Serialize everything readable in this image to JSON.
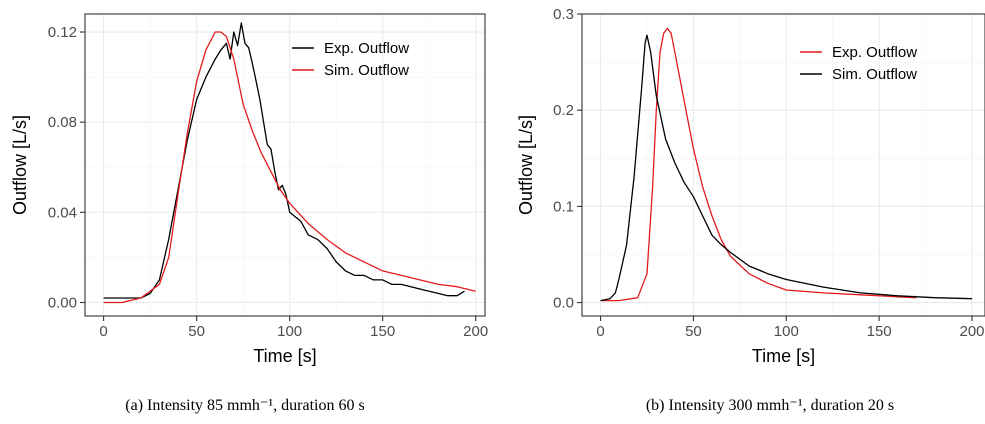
{
  "chart_data": [
    {
      "type": "line",
      "caption": "(a)  Intensity 85 mmh⁻¹, duration 60 s",
      "xlabel": "Time [s]",
      "ylabel": "Outflow [L/s]",
      "xlim": [
        -10,
        205
      ],
      "ylim": [
        -0.006,
        0.128
      ],
      "xticks": [
        0,
        50,
        100,
        150,
        200
      ],
      "xtick_labels": [
        "0",
        "50",
        "100",
        "150",
        "200"
      ],
      "yticks": [
        0.0,
        0.04,
        0.08,
        0.12
      ],
      "ytick_labels": [
        "0.00",
        "0.04",
        "0.08",
        "0.12"
      ],
      "grid": true,
      "legend_position": "top-right",
      "series": [
        {
          "name": "Exp. Outflow",
          "color": "#000000",
          "x": [
            0,
            10,
            20,
            25,
            30,
            35,
            40,
            45,
            50,
            55,
            60,
            63,
            66,
            68,
            70,
            72,
            74,
            76,
            78,
            80,
            82,
            84,
            86,
            88,
            90,
            92,
            94,
            96,
            98,
            100,
            103,
            106,
            110,
            115,
            120,
            125,
            130,
            135,
            140,
            145,
            150,
            155,
            160,
            170,
            180,
            185,
            190,
            194
          ],
          "y": [
            0.002,
            0.002,
            0.002,
            0.004,
            0.01,
            0.028,
            0.05,
            0.072,
            0.09,
            0.1,
            0.108,
            0.112,
            0.115,
            0.108,
            0.12,
            0.114,
            0.124,
            0.115,
            0.113,
            0.106,
            0.098,
            0.09,
            0.08,
            0.07,
            0.068,
            0.058,
            0.05,
            0.052,
            0.048,
            0.04,
            0.038,
            0.036,
            0.03,
            0.028,
            0.024,
            0.018,
            0.014,
            0.012,
            0.012,
            0.01,
            0.01,
            0.008,
            0.008,
            0.006,
            0.004,
            0.003,
            0.003,
            0.005
          ]
        },
        {
          "name": "Sim. Outflow",
          "color": "#e41a1c",
          "x": [
            0,
            10,
            20,
            30,
            35,
            40,
            45,
            50,
            55,
            60,
            63,
            66,
            70,
            75,
            80,
            85,
            90,
            95,
            100,
            110,
            120,
            130,
            140,
            150,
            160,
            170,
            180,
            190,
            200
          ],
          "y": [
            0.0,
            0.0,
            0.002,
            0.008,
            0.02,
            0.048,
            0.075,
            0.098,
            0.112,
            0.12,
            0.12,
            0.118,
            0.108,
            0.088,
            0.076,
            0.066,
            0.058,
            0.05,
            0.044,
            0.035,
            0.028,
            0.022,
            0.018,
            0.014,
            0.012,
            0.01,
            0.008,
            0.007,
            0.005
          ]
        }
      ]
    },
    {
      "type": "line",
      "caption": "(b)  Intensity 300 mmh⁻¹, duration 20 s",
      "xlabel": "Time [s]",
      "ylabel": "Outflow [L/s]",
      "xlim": [
        -10,
        207
      ],
      "ylim": [
        -0.014,
        0.3
      ],
      "xticks": [
        0,
        50,
        100,
        150,
        200
      ],
      "xtick_labels": [
        "0",
        "50",
        "100",
        "150",
        "200"
      ],
      "yticks": [
        0.0,
        0.1,
        0.2,
        0.3
      ],
      "ytick_labels": [
        "0.0",
        "0.1",
        "0.2",
        "0.3"
      ],
      "grid": true,
      "legend_position": "top-right",
      "series": [
        {
          "name": "Exp. Outflow",
          "color": "#e41a1c",
          "x": [
            0,
            10,
            20,
            25,
            28,
            30,
            32,
            34,
            36,
            38,
            40,
            45,
            50,
            55,
            60,
            65,
            70,
            80,
            90,
            100,
            120,
            140,
            160,
            170
          ],
          "y": [
            0.002,
            0.002,
            0.005,
            0.03,
            0.12,
            0.2,
            0.26,
            0.28,
            0.285,
            0.28,
            0.26,
            0.21,
            0.16,
            0.12,
            0.09,
            0.065,
            0.048,
            0.03,
            0.02,
            0.013,
            0.01,
            0.008,
            0.006,
            0.005
          ]
        },
        {
          "name": "Sim. Outflow",
          "color": "#000000",
          "x": [
            0,
            5,
            8,
            10,
            14,
            18,
            22,
            24,
            25,
            27,
            30,
            35,
            40,
            45,
            50,
            55,
            60,
            65,
            70,
            80,
            90,
            100,
            120,
            140,
            160,
            180,
            200
          ],
          "y": [
            0.002,
            0.004,
            0.01,
            0.025,
            0.06,
            0.13,
            0.22,
            0.27,
            0.278,
            0.26,
            0.215,
            0.17,
            0.145,
            0.125,
            0.11,
            0.09,
            0.07,
            0.06,
            0.052,
            0.038,
            0.03,
            0.024,
            0.016,
            0.01,
            0.007,
            0.005,
            0.004
          ]
        }
      ]
    }
  ]
}
